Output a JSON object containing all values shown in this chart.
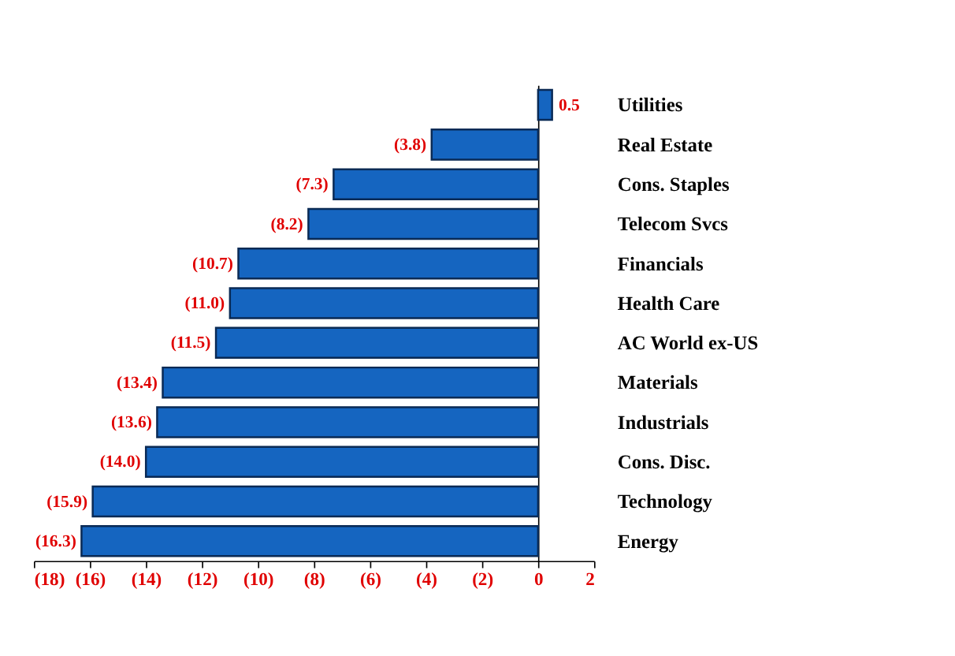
{
  "chart_data": {
    "type": "bar",
    "orientation": "horizontal",
    "categories": [
      "Utilities",
      "Real Estate",
      "Cons. Staples",
      "Telecom Svcs",
      "Financials",
      "Health Care",
      "AC World ex-US",
      "Materials",
      "Industrials",
      "Cons. Disc.",
      "Technology",
      "Energy"
    ],
    "values": [
      0.5,
      -3.8,
      -7.3,
      -8.2,
      -10.7,
      -11.0,
      -11.5,
      -13.4,
      -13.6,
      -14.0,
      -15.9,
      -16.3
    ],
    "value_labels": [
      "0.5",
      "(3.8)",
      "(7.3)",
      "(8.2)",
      "(10.7)",
      "(11.0)",
      "(11.5)",
      "(13.4)",
      "(13.6)",
      "(14.0)",
      "(15.9)",
      "(16.3)"
    ],
    "color": "#1565c0",
    "xlim": [
      -18,
      2
    ],
    "xticks": [
      {
        "value": -18,
        "label": "(18)"
      },
      {
        "value": -16,
        "label": "(16)"
      },
      {
        "value": -14,
        "label": "(14)"
      },
      {
        "value": -12,
        "label": "(12)"
      },
      {
        "value": -10,
        "label": "(10)"
      },
      {
        "value": -8,
        "label": "(8)"
      },
      {
        "value": -6,
        "label": "(6)"
      },
      {
        "value": -4,
        "label": "(4)"
      },
      {
        "value": -2,
        "label": "(2)"
      },
      0,
      2
    ]
  }
}
